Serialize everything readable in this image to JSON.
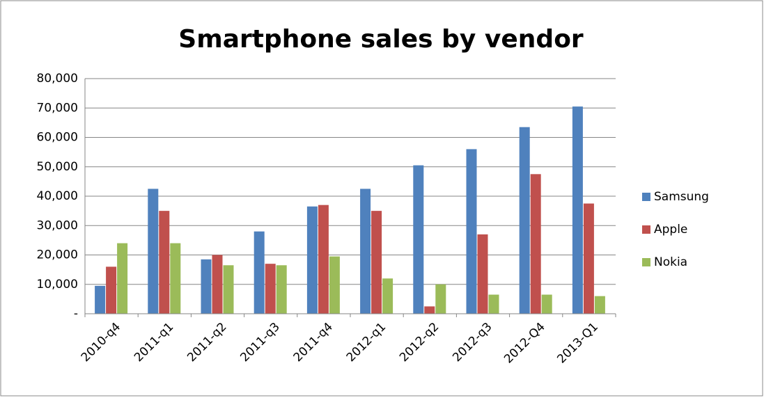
{
  "chart_data": {
    "type": "bar",
    "title": "Smartphone sales by vendor",
    "categories": [
      "2010-q4",
      "2011-q1",
      "2011-q2",
      "2011-q3",
      "2011-q4",
      "2012-q1",
      "2012-q2",
      "2012-q3",
      "2012-Q4",
      "2013-Q1"
    ],
    "series": [
      {
        "name": "Samsung",
        "color": "#4f81bd",
        "values": [
          9500,
          42500,
          18500,
          28000,
          36500,
          42500,
          50500,
          56000,
          63500,
          70500
        ]
      },
      {
        "name": "Apple",
        "color": "#c0504d",
        "values": [
          16000,
          35000,
          20000,
          17000,
          37000,
          35000,
          2500,
          27000,
          47500,
          37500
        ]
      },
      {
        "name": "Nokia",
        "color": "#9bbb59",
        "values": [
          24000,
          24000,
          16500,
          16500,
          19500,
          12000,
          10000,
          6500,
          6500,
          6000
        ]
      }
    ],
    "ylim": [
      0,
      80000
    ],
    "yticks": [
      {
        "value": 0,
        "label": "-"
      },
      {
        "value": 10000,
        "label": "10,000"
      },
      {
        "value": 20000,
        "label": "20,000"
      },
      {
        "value": 30000,
        "label": "30,000"
      },
      {
        "value": 40000,
        "label": "40,000"
      },
      {
        "value": 50000,
        "label": "50,000"
      },
      {
        "value": 60000,
        "label": "60,000"
      },
      {
        "value": 70000,
        "label": "70,000"
      },
      {
        "value": 80000,
        "label": "80,000"
      }
    ],
    "grid": true,
    "legend": "right"
  }
}
